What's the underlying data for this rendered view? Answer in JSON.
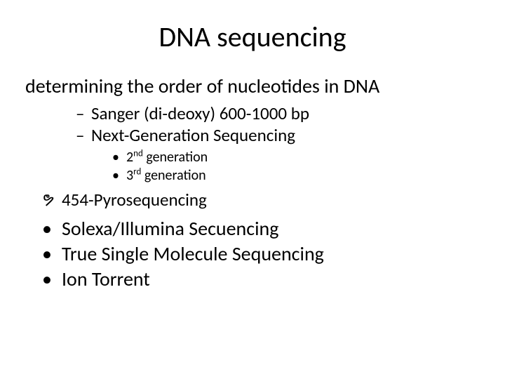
{
  "title": "DNA sequencing",
  "subtitle": "determining the order of nucleotides in DNA",
  "level1": {
    "item1": "Sanger (di-deoxy) 600-1000 bp",
    "item2": "Next-Generation Sequencing"
  },
  "level2": {
    "item1_pre": "2",
    "item1_sup": "nd",
    "item1_post": " generation",
    "item2_pre": "3",
    "item2_sup": "rd",
    "item2_post": " generation"
  },
  "wave_item": "454-Pyrosequencing",
  "bottom": {
    "item1": "Solexa/Illumina Secuencing",
    "item2": "True Single Molecule Sequencing",
    "item3": "Ion Torrent"
  },
  "bullets": {
    "dash": "–",
    "dot_small": "•",
    "dot": "•",
    "wave": "ຯ"
  }
}
